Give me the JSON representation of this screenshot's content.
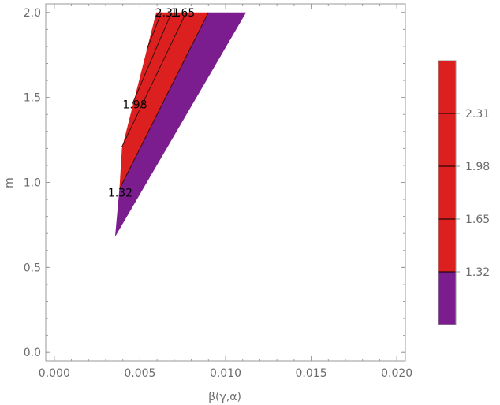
{
  "chart_data": {
    "type": "contour",
    "xlabel": "β(γ,α)",
    "ylabel": "m",
    "xlim": [
      -0.0005,
      0.0205
    ],
    "ylim": [
      -0.05,
      2.05
    ],
    "x_ticks": [
      {
        "value": 0.0,
        "label": "0.000"
      },
      {
        "value": 0.005,
        "label": "0.005"
      },
      {
        "value": 0.01,
        "label": "0.010"
      },
      {
        "value": 0.015,
        "label": "0.015"
      },
      {
        "value": 0.02,
        "label": "0.020"
      }
    ],
    "y_ticks": [
      {
        "value": 0.0,
        "label": "0.0"
      },
      {
        "value": 0.5,
        "label": "0.5"
      },
      {
        "value": 1.0,
        "label": "1.0"
      },
      {
        "value": 1.5,
        "label": "1.5"
      },
      {
        "value": 2.0,
        "label": "2.0"
      }
    ],
    "colors": {
      "low": "#7b1d8f",
      "high": "#dc2020",
      "line": "#3a0c0c",
      "frame": "#9a9a9a"
    },
    "regions": [
      {
        "color": "high",
        "polygon": [
          [
            0.0038,
            0.96
          ],
          [
            0.00395,
            1.2
          ],
          [
            0.0054,
            1.78
          ],
          [
            0.00595,
            2.0
          ],
          [
            0.009,
            2.0
          ]
        ]
      },
      {
        "color": "low",
        "polygon": [
          [
            0.00355,
            0.68
          ],
          [
            0.0038,
            0.96
          ],
          [
            0.009,
            2.0
          ],
          [
            0.0112,
            2.0
          ]
        ]
      }
    ],
    "contours": [
      {
        "level": 1.32,
        "points": [
          [
            0.0038,
            0.96
          ],
          [
            0.009,
            2.0
          ]
        ]
      },
      {
        "level": 1.65,
        "points": [
          [
            0.00395,
            1.21
          ],
          [
            0.0077,
            2.0
          ]
        ]
      },
      {
        "level": 1.98,
        "points": [
          [
            0.00455,
            1.46
          ],
          [
            0.00685,
            2.0
          ]
        ]
      },
      {
        "level": 2.31,
        "points": [
          [
            0.0054,
            1.78
          ],
          [
            0.00625,
            2.0
          ]
        ]
      }
    ],
    "contour_labels": [
      {
        "text": "2.31",
        "x": 0.0066,
        "y": 2.0
      },
      {
        "text": "1.65",
        "x": 0.0075,
        "y": 2.0
      },
      {
        "text": "1.98",
        "x": 0.0047,
        "y": 1.46
      },
      {
        "text": "1.32",
        "x": 0.00385,
        "y": 0.94
      }
    ],
    "legend": {
      "placement": "right",
      "range": [
        0.99,
        2.64
      ],
      "boundaries": [
        1.32,
        1.65,
        1.98,
        2.31
      ],
      "bands": [
        {
          "from": 0.99,
          "to": 1.32,
          "color": "low"
        },
        {
          "from": 1.32,
          "to": 2.64,
          "color": "high"
        }
      ],
      "ticks": [
        {
          "value": 1.32,
          "label": "1.32"
        },
        {
          "value": 1.65,
          "label": "1.65"
        },
        {
          "value": 1.98,
          "label": "1.98"
        },
        {
          "value": 2.31,
          "label": "2.31"
        }
      ]
    }
  }
}
